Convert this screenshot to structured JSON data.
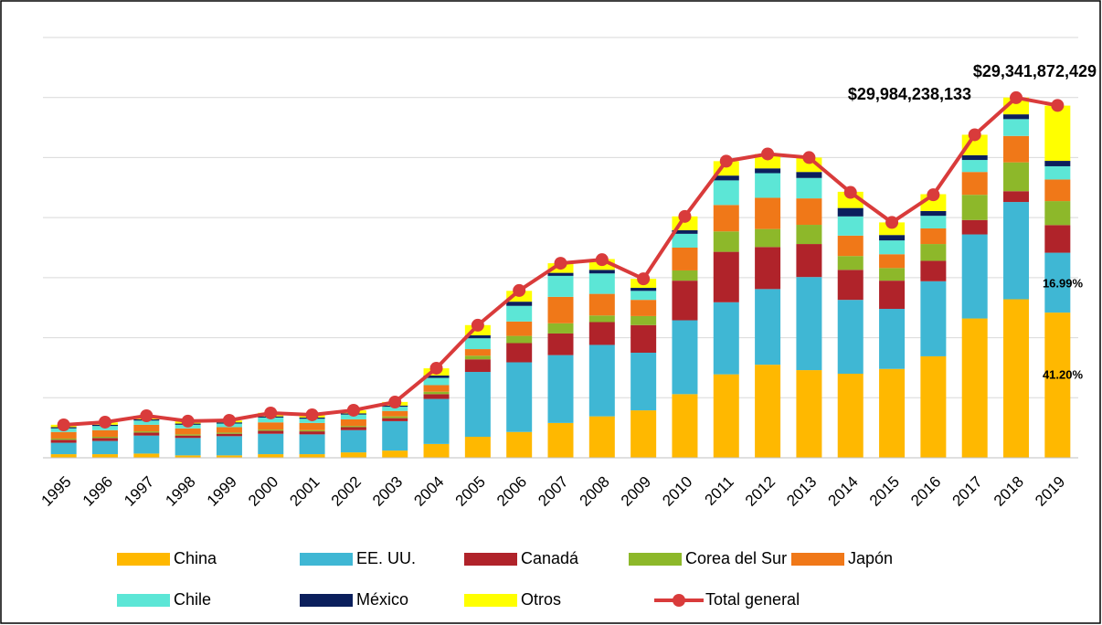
{
  "chart_data": {
    "type": "stacked-bar-line",
    "categories": [
      "1995",
      "1996",
      "1997",
      "1998",
      "1999",
      "2000",
      "2001",
      "2002",
      "2003",
      "2004",
      "2005",
      "2006",
      "2007",
      "2008",
      "2009",
      "2010",
      "2011",
      "2012",
      "2013",
      "2014",
      "2015",
      "2016",
      "2017",
      "2018",
      "2019"
    ],
    "series": [
      {
        "name": "China",
        "color": "#FFB800",
        "values": [
          300000000.0,
          300000000.0,
          350000000.0,
          200000000.0,
          200000000.0,
          300000000.0,
          300000000.0,
          450000000.0,
          600000000.0,
          1150000000.0,
          1750000000.0,
          2150000000.0,
          2900000000.0,
          3450000000.0,
          3950000000.0,
          5300000000.0,
          6950000000.0,
          7750000000.0,
          7300000000.0,
          7000000000.0,
          7400000000.0,
          8450000000.0,
          11600000000.0,
          13200000000.0,
          12090000000.0
        ]
      },
      {
        "name": "EE. UU.",
        "color": "#3FB7D4",
        "values": [
          950000000.0,
          1100000000.0,
          1500000000.0,
          1450000000.0,
          1600000000.0,
          1700000000.0,
          1650000000.0,
          1850000000.0,
          2450000000.0,
          3750000000.0,
          5400000000.0,
          5800000000.0,
          5650000000.0,
          5950000000.0,
          4800000000.0,
          6150000000.0,
          6000000000.0,
          6300000000.0,
          7750000000.0,
          6150000000.0,
          5000000000.0,
          6250000000.0,
          7000000000.0,
          8100000000.0,
          4985000000.0
        ]
      },
      {
        "name": "Canadá",
        "color": "#B0232A",
        "values": [
          250000000.0,
          250000000.0,
          250000000.0,
          200000000.0,
          200000000.0,
          250000000.0,
          250000000.0,
          250000000.0,
          250000000.0,
          400000000.0,
          1050000000.0,
          1600000000.0,
          1800000000.0,
          1900000000.0,
          2300000000.0,
          3300000000.0,
          4200000000.0,
          3500000000.0,
          2750000000.0,
          2500000000.0,
          2350000000.0,
          1700000000.0,
          1200000000.0,
          900000000.0,
          2300000000.0
        ]
      },
      {
        "name": "Corea del Sur",
        "color": "#8DB82A",
        "values": [
          100000000.0,
          100000000.0,
          100000000.0,
          100000000.0,
          100000000.0,
          100000000.0,
          100000000.0,
          100000000.0,
          150000000.0,
          200000000.0,
          300000000.0,
          600000000.0,
          850000000.0,
          550000000.0,
          750000000.0,
          850000000.0,
          1700000000.0,
          1500000000.0,
          1600000000.0,
          1150000000.0,
          1050000000.0,
          1400000000.0,
          2100000000.0,
          2400000000.0,
          2000000000.0
        ]
      },
      {
        "name": "Japón",
        "color": "#F07818",
        "values": [
          550000000.0,
          550000000.0,
          550000000.0,
          500000000.0,
          450000000.0,
          600000000.0,
          600000000.0,
          550000000.0,
          450000000.0,
          550000000.0,
          550000000.0,
          1200000000.0,
          2200000000.0,
          1800000000.0,
          1350000000.0,
          1900000000.0,
          2200000000.0,
          2600000000.0,
          2200000000.0,
          1700000000.0,
          1150000000.0,
          1300000000.0,
          1900000000.0,
          2200000000.0,
          1800000000.0
        ]
      },
      {
        "name": "Chile",
        "color": "#5CE6D6",
        "values": [
          300000000.0,
          350000000.0,
          350000000.0,
          300000000.0,
          300000000.0,
          400000000.0,
          350000000.0,
          400000000.0,
          350000000.0,
          600000000.0,
          900000000.0,
          1300000000.0,
          1750000000.0,
          1700000000.0,
          750000000.0,
          1150000000.0,
          2050000000.0,
          2050000000.0,
          1700000000.0,
          1600000000.0,
          1150000000.0,
          1050000000.0,
          1000000000.0,
          1400000000.0,
          1100000000.0
        ]
      },
      {
        "name": "México",
        "color": "#0B1F5C",
        "values": [
          100000000.0,
          100000000.0,
          100000000.0,
          100000000.0,
          100000000.0,
          100000000.0,
          100000000.0,
          100000000.0,
          100000000.0,
          200000000.0,
          250000000.0,
          350000000.0,
          250000000.0,
          300000000.0,
          250000000.0,
          300000000.0,
          400000000.0,
          400000000.0,
          500000000.0,
          700000000.0,
          450000000.0,
          400000000.0,
          400000000.0,
          400000000.0,
          450000000.0
        ]
      },
      {
        "name": "Otros",
        "color": "#FFFF00",
        "values": [
          200000000.0,
          200000000.0,
          300000000.0,
          200000000.0,
          150000000.0,
          300000000.0,
          200000000.0,
          250000000.0,
          300000000.0,
          600000000.0,
          850000000.0,
          900000000.0,
          800000000.0,
          900000000.0,
          750000000.0,
          1150000000.0,
          1200000000.0,
          1200000000.0,
          1200000000.0,
          1350000000.0,
          1050000000.0,
          1400000000.0,
          1700000000.0,
          1400000000.0,
          4600000000.0
        ]
      }
    ],
    "total": {
      "name": "Total general",
      "color": "#D93B3B",
      "values": [
        2740000000.0,
        2970000000.0,
        3500000000.0,
        3050000000.0,
        3120000000.0,
        3730000000.0,
        3580000000.0,
        3960000000.0,
        4640000000.0,
        7460000000.0,
        11040000000.0,
        13930000000.0,
        16200000000.0,
        16500000000.0,
        14900000000.0,
        20100000000.0,
        24700000000.0,
        25300000000.0,
        25000000000.0,
        22100000000.0,
        19600000000.0,
        21900000000.0,
        26900000000.0,
        29984238133,
        29341872429
      ],
      "value_labels": [
        null,
        null,
        null,
        null,
        null,
        null,
        null,
        null,
        null,
        null,
        null,
        null,
        null,
        null,
        null,
        null,
        null,
        null,
        null,
        null,
        null,
        null,
        null,
        "$29,984,238,133",
        "$29,341,872,429"
      ]
    },
    "annotations": [
      "16.99%",
      "41.20%"
    ],
    "ylim": [
      0,
      35000000000.0
    ],
    "yticks": [
      0,
      5000000000.0,
      10000000000.0,
      15000000000.0,
      20000000000.0,
      25000000000.0,
      30000000000.0,
      35000000000.0
    ],
    "grid": true
  }
}
